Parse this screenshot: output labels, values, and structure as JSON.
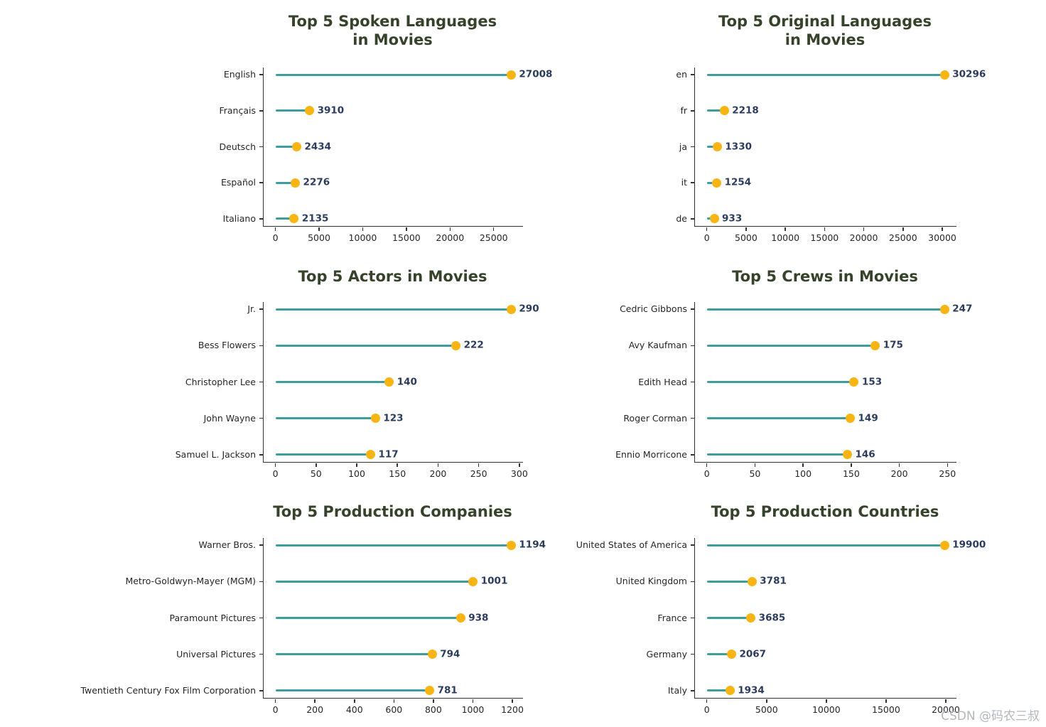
{
  "watermark": "CSDN @码农三叔",
  "colors": {
    "stem": "#3c9e9e",
    "dot": "#f7b413",
    "value_label": "#2c3c5c",
    "title": "#37422a",
    "axis_text": "#262626"
  },
  "chart_data": [
    {
      "type": "lollipop",
      "orientation": "horizontal",
      "title_lines": [
        "Top 5 Spoken Languages",
        "in Movies"
      ],
      "categories": [
        "English",
        "Français",
        "Deutsch",
        "Español",
        "Italiano"
      ],
      "values": [
        27008,
        3910,
        2434,
        2276,
        2135
      ],
      "xticks": [
        0,
        5000,
        10000,
        15000,
        20000,
        25000
      ],
      "xlim": [
        -1350,
        28358
      ],
      "grid": false,
      "legend": false
    },
    {
      "type": "lollipop",
      "orientation": "horizontal",
      "title_lines": [
        "Top 5 Original Languages",
        "in Movies"
      ],
      "categories": [
        "en",
        "fr",
        "ja",
        "it",
        "de"
      ],
      "values": [
        30296,
        2218,
        1330,
        1254,
        933
      ],
      "xticks": [
        0,
        5000,
        10000,
        15000,
        20000,
        25000,
        30000
      ],
      "xlim": [
        -1515,
        31811
      ],
      "grid": false,
      "legend": false
    },
    {
      "type": "lollipop",
      "orientation": "horizontal",
      "title_lines": [
        "Top 5 Actors in Movies"
      ],
      "categories": [
        "Jr.",
        "Bess Flowers",
        "Christopher Lee",
        "John Wayne",
        "Samuel L. Jackson"
      ],
      "values": [
        290,
        222,
        140,
        123,
        117
      ],
      "xticks": [
        0,
        50,
        100,
        150,
        200,
        250,
        300
      ],
      "xlim": [
        -14.5,
        304.5
      ],
      "grid": false,
      "legend": false
    },
    {
      "type": "lollipop",
      "orientation": "horizontal",
      "title_lines": [
        "Top 5 Crews in Movies"
      ],
      "categories": [
        "Cedric Gibbons",
        "Avy Kaufman",
        "Edith Head",
        "Roger Corman",
        "Ennio Morricone"
      ],
      "values": [
        247,
        175,
        153,
        149,
        146
      ],
      "xticks": [
        0,
        50,
        100,
        150,
        200,
        250
      ],
      "xlim": [
        -12.35,
        259.35
      ],
      "grid": false,
      "legend": false
    },
    {
      "type": "lollipop",
      "orientation": "horizontal",
      "title_lines": [
        "Top 5 Production Companies"
      ],
      "categories": [
        "Warner Bros.",
        "Metro-Goldwyn-Mayer (MGM)",
        "Paramount Pictures",
        "Universal Pictures",
        "Twentieth Century Fox Film Corporation"
      ],
      "values": [
        1194,
        1001,
        938,
        794,
        781
      ],
      "xticks": [
        0,
        200,
        400,
        600,
        800,
        1000,
        1200
      ],
      "xlim": [
        -59.7,
        1253.7
      ],
      "grid": false,
      "legend": false
    },
    {
      "type": "lollipop",
      "orientation": "horizontal",
      "title_lines": [
        "Top 5 Production Countries"
      ],
      "categories": [
        "United States of America",
        "United Kingdom",
        "France",
        "Germany",
        "Italy"
      ],
      "values": [
        19900,
        3781,
        3685,
        2067,
        1934
      ],
      "xticks": [
        0,
        5000,
        10000,
        15000,
        20000
      ],
      "xlim": [
        -995,
        20895
      ],
      "grid": false,
      "legend": false
    }
  ]
}
